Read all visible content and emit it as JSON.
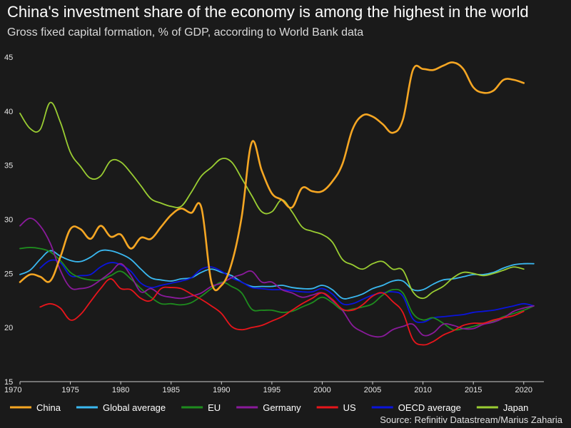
{
  "chart_data": {
    "type": "line",
    "title": "China's investment share of the economy is among the highest in the world",
    "subtitle": "Gross fixed capital formation, % of GDP, according to World Bank data",
    "source": "Source: Refinitiv Datastream/Marius Zaharia",
    "xlabel": "",
    "ylabel": "",
    "xlim": [
      1970,
      2022
    ],
    "ylim": [
      15,
      45
    ],
    "x_ticks": [
      1970,
      1975,
      1980,
      1985,
      1990,
      1995,
      2000,
      2005,
      2010,
      2015,
      2020
    ],
    "x_tick_labels": [
      "1970",
      "1975",
      "1980",
      "1985",
      "1990",
      "1995",
      "2000",
      "2005",
      "2010",
      "2015",
      "2020"
    ],
    "y_ticks": [
      15,
      20,
      25,
      30,
      35,
      40,
      45
    ],
    "y_tick_labels": [
      "15",
      "20",
      "25",
      "30",
      "35",
      "40",
      "45"
    ],
    "grid": false,
    "legend_position": "bottom",
    "series": [
      {
        "name": "China",
        "color": "#f5a623",
        "width": 2.6,
        "start": 1970,
        "values": [
          24.2,
          24.9,
          24.7,
          24.3,
          26.5,
          29.1,
          29.1,
          28.2,
          29.4,
          28.4,
          28.6,
          27.3,
          28.3,
          28.2,
          29.3,
          30.4,
          31.0,
          30.6,
          31.1,
          24.2,
          23.9,
          25.9,
          30.2,
          37.1,
          34.5,
          32.4,
          31.8,
          31.1,
          32.9,
          32.6,
          32.6,
          33.5,
          35.1,
          38.3,
          39.6,
          39.5,
          38.8,
          38.0,
          39.2,
          43.8,
          43.9,
          43.8,
          44.2,
          44.5,
          43.9,
          42.2,
          41.7,
          41.9,
          42.9,
          42.9,
          42.6
        ]
      },
      {
        "name": "Global average",
        "color": "#3ab8f0",
        "width": 1.8,
        "start": 1970,
        "values": [
          24.9,
          25.3,
          26.3,
          27.1,
          26.6,
          26.2,
          26.1,
          26.5,
          27.1,
          27.1,
          26.8,
          26.3,
          25.4,
          24.6,
          24.4,
          24.3,
          24.5,
          24.6,
          25.1,
          25.4,
          25.1,
          24.8,
          24.2,
          23.8,
          23.8,
          23.8,
          23.9,
          23.7,
          23.6,
          23.6,
          23.9,
          23.5,
          22.7,
          22.8,
          23.1,
          23.6,
          23.9,
          24.3,
          24.3,
          23.5,
          23.5,
          24.0,
          24.4,
          24.5,
          24.7,
          24.9,
          24.9,
          25.1,
          25.5,
          25.8,
          25.9,
          25.9
        ]
      },
      {
        "name": "EU",
        "color": "#1e8c1e",
        "width": 1.8,
        "start": 1970,
        "values": [
          27.3,
          27.4,
          27.3,
          27.0,
          26.2,
          25.1,
          24.6,
          24.4,
          24.4,
          24.8,
          25.2,
          24.5,
          23.6,
          22.8,
          22.2,
          22.2,
          22.1,
          22.3,
          22.9,
          23.6,
          24.2,
          23.8,
          23.2,
          21.7,
          21.6,
          21.6,
          21.4,
          21.5,
          21.9,
          22.3,
          22.8,
          22.3,
          21.6,
          21.7,
          21.9,
          22.2,
          23.0,
          23.5,
          23.2,
          21.3,
          20.7,
          20.9,
          20.4,
          19.8,
          19.9,
          20.1,
          20.4,
          20.6,
          21.0,
          21.3,
          21.6,
          22.0
        ]
      },
      {
        "name": "Germany",
        "color": "#8a1a9b",
        "width": 1.8,
        "start": 1970,
        "values": [
          29.4,
          30.1,
          29.4,
          27.8,
          25.3,
          23.7,
          23.6,
          23.8,
          24.4,
          25.1,
          25.9,
          24.8,
          23.3,
          23.6,
          23.0,
          22.8,
          22.7,
          22.9,
          23.2,
          23.8,
          24.1,
          24.6,
          24.9,
          25.2,
          24.2,
          24.2,
          23.5,
          23.2,
          22.8,
          23.0,
          23.2,
          22.5,
          21.6,
          20.2,
          19.6,
          19.2,
          19.2,
          19.8,
          20.1,
          20.3,
          19.3,
          19.5,
          20.3,
          20.2,
          19.9,
          19.9,
          20.3,
          20.5,
          20.9,
          21.5,
          21.8,
          22.0
        ]
      },
      {
        "name": "US",
        "color": "#e8151b",
        "width": 1.8,
        "start": 1972,
        "values": [
          21.9,
          22.2,
          21.8,
          20.7,
          21.2,
          22.4,
          23.6,
          24.5,
          23.6,
          23.5,
          22.7,
          22.5,
          23.6,
          23.7,
          23.6,
          23.1,
          22.6,
          22.0,
          21.3,
          20.1,
          19.8,
          20.0,
          20.2,
          20.6,
          21.0,
          21.6,
          22.2,
          22.7,
          23.2,
          22.6,
          21.7,
          21.6,
          22.1,
          22.9,
          23.2,
          22.4,
          21.4,
          18.9,
          18.4,
          18.7,
          19.3,
          19.7,
          20.2,
          20.4,
          20.4,
          20.7,
          20.9,
          21.1,
          21.5
        ]
      },
      {
        "name": "OECD average",
        "color": "#0a14dc",
        "width": 1.8,
        "start": 1970,
        "values": [
          null,
          null,
          25.5,
          26.2,
          26.0,
          24.8,
          24.8,
          24.9,
          25.6,
          26.0,
          25.8,
          25.2,
          24.1,
          23.7,
          23.9,
          24.1,
          24.3,
          24.6,
          25.4,
          25.6,
          25.2,
          24.6,
          24.2,
          23.7,
          23.6,
          23.5,
          23.5,
          23.4,
          23.3,
          23.3,
          23.6,
          23.1,
          22.2,
          22.2,
          22.6,
          23.0,
          23.2,
          23.3,
          22.9,
          20.8,
          20.5,
          20.9,
          21.0,
          21.1,
          21.2,
          21.4,
          21.5,
          21.6,
          21.8,
          22.0,
          22.2,
          22.0
        ]
      },
      {
        "name": "Japan",
        "color": "#9acd32",
        "width": 1.8,
        "start": 1970,
        "values": [
          39.8,
          38.4,
          38.3,
          40.8,
          39.0,
          36.2,
          34.9,
          33.8,
          34.0,
          35.4,
          35.3,
          34.3,
          33.1,
          31.9,
          31.5,
          31.2,
          31.2,
          32.5,
          34.0,
          34.8,
          35.6,
          35.3,
          33.8,
          32.2,
          30.7,
          30.7,
          31.8,
          30.7,
          29.3,
          28.9,
          28.6,
          27.9,
          26.3,
          25.8,
          25.4,
          25.9,
          26.1,
          25.4,
          25.3,
          23.3,
          22.7,
          23.3,
          23.8,
          24.6,
          25.1,
          25.0,
          24.8,
          25.0,
          25.3,
          25.6,
          25.4
        ]
      }
    ]
  }
}
